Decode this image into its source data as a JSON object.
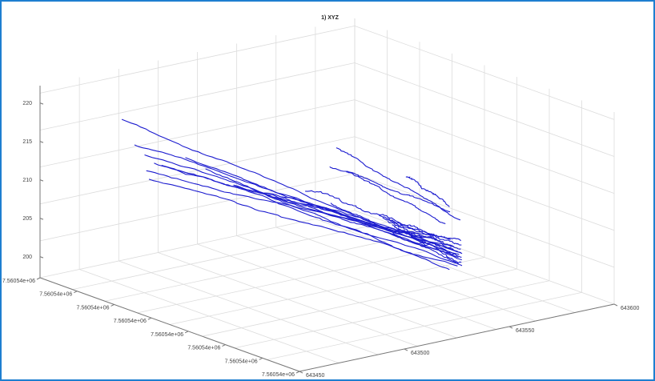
{
  "window": {
    "border_color": "#1e7fd0",
    "background": "#ffffff"
  },
  "chart_data": {
    "type": "line",
    "projection": "3d",
    "title": "1) XYZ",
    "xlabel": "",
    "ylabel": "",
    "zlabel": "",
    "grid": true,
    "line_color": "#1c1ccf",
    "z_ticks": [
      "200",
      "205",
      "210",
      "215",
      "220"
    ],
    "left_axis_ticks": [
      "7.56054e+06",
      "7.56054e+06",
      "7.56054e+06",
      "7.56054e+06",
      "7.56054e+06",
      "7.56054e+06",
      "7.56054e+06",
      "7.56054e+06"
    ],
    "right_axis_ticks": [
      "643600",
      "643550",
      "643500",
      "643450"
    ],
    "zlim": [
      198,
      222
    ],
    "series_count": 18
  }
}
